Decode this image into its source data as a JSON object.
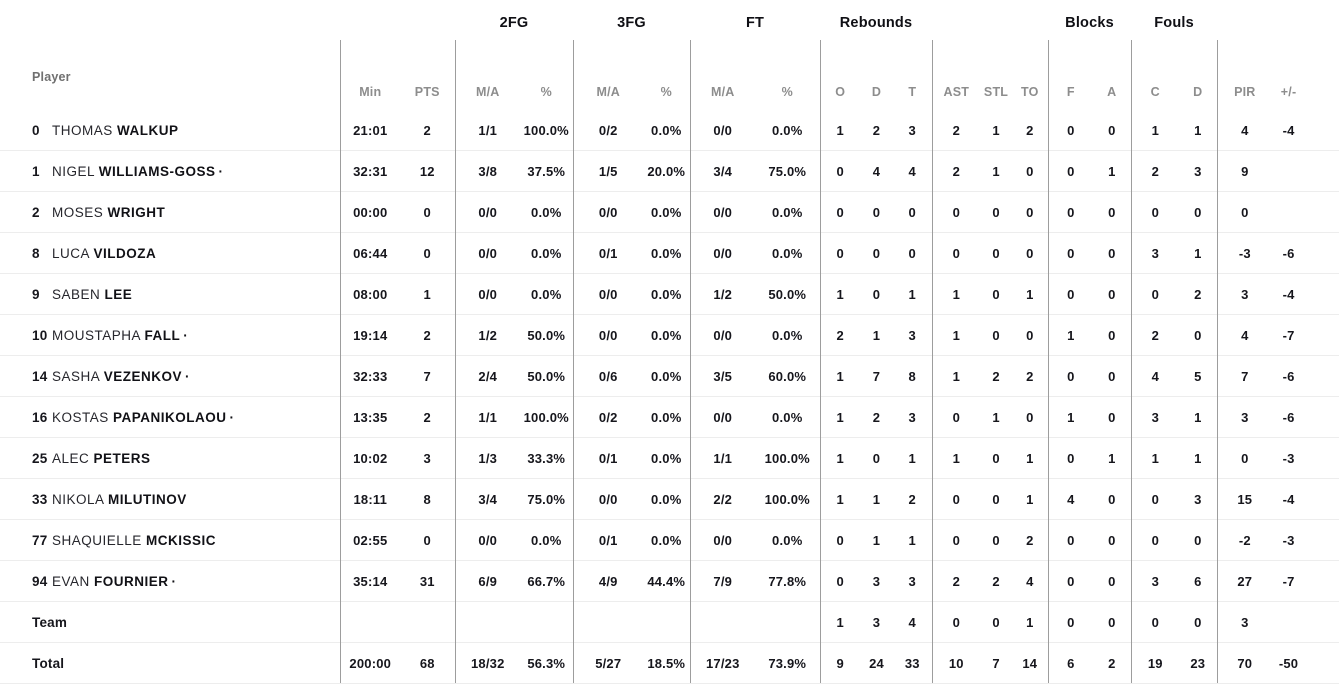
{
  "table": {
    "starter_marker": "·",
    "group_headers": {
      "fg2": "2FG",
      "fg3": "3FG",
      "ft": "FT",
      "rebounds": "Rebounds",
      "blocks": "Blocks",
      "fouls": "Fouls"
    },
    "columns": {
      "player": "Player",
      "min": "Min",
      "pts": "PTS",
      "ma": "M/A",
      "pct": "%",
      "reb_o": "O",
      "reb_d": "D",
      "reb_t": "T",
      "ast": "AST",
      "stl": "STL",
      "to": "TO",
      "blk_f": "F",
      "blk_a": "A",
      "foul_c": "C",
      "foul_d": "D",
      "pir": "PIR",
      "plus_minus": "+/-"
    },
    "rows": [
      {
        "type": "player",
        "num": "0",
        "first": "THOMAS",
        "last": "WALKUP",
        "starter": false,
        "min": "21:01",
        "pts": "2",
        "fg2_ma": "1/1",
        "fg2_pct": "100.0%",
        "fg3_ma": "0/2",
        "fg3_pct": "0.0%",
        "ft_ma": "0/0",
        "ft_pct": "0.0%",
        "reb_o": "1",
        "reb_d": "2",
        "reb_t": "3",
        "ast": "2",
        "stl": "1",
        "to": "2",
        "blk_f": "0",
        "blk_a": "0",
        "foul_c": "1",
        "foul_d": "1",
        "pir": "4",
        "pm": "-4"
      },
      {
        "type": "player",
        "num": "1",
        "first": "NIGEL",
        "last": "WILLIAMS-GOSS",
        "starter": true,
        "min": "32:31",
        "pts": "12",
        "fg2_ma": "3/8",
        "fg2_pct": "37.5%",
        "fg3_ma": "1/5",
        "fg3_pct": "20.0%",
        "ft_ma": "3/4",
        "ft_pct": "75.0%",
        "reb_o": "0",
        "reb_d": "4",
        "reb_t": "4",
        "ast": "2",
        "stl": "1",
        "to": "0",
        "blk_f": "0",
        "blk_a": "1",
        "foul_c": "2",
        "foul_d": "3",
        "pir": "9",
        "pm": ""
      },
      {
        "type": "player",
        "num": "2",
        "first": "MOSES",
        "last": "WRIGHT",
        "starter": false,
        "min": "00:00",
        "pts": "0",
        "fg2_ma": "0/0",
        "fg2_pct": "0.0%",
        "fg3_ma": "0/0",
        "fg3_pct": "0.0%",
        "ft_ma": "0/0",
        "ft_pct": "0.0%",
        "reb_o": "0",
        "reb_d": "0",
        "reb_t": "0",
        "ast": "0",
        "stl": "0",
        "to": "0",
        "blk_f": "0",
        "blk_a": "0",
        "foul_c": "0",
        "foul_d": "0",
        "pir": "0",
        "pm": ""
      },
      {
        "type": "player",
        "num": "8",
        "first": "LUCA",
        "last": "VILDOZA",
        "starter": false,
        "min": "06:44",
        "pts": "0",
        "fg2_ma": "0/0",
        "fg2_pct": "0.0%",
        "fg3_ma": "0/1",
        "fg3_pct": "0.0%",
        "ft_ma": "0/0",
        "ft_pct": "0.0%",
        "reb_o": "0",
        "reb_d": "0",
        "reb_t": "0",
        "ast": "0",
        "stl": "0",
        "to": "0",
        "blk_f": "0",
        "blk_a": "0",
        "foul_c": "3",
        "foul_d": "1",
        "pir": "-3",
        "pm": "-6"
      },
      {
        "type": "player",
        "num": "9",
        "first": "SABEN",
        "last": "LEE",
        "starter": false,
        "min": "08:00",
        "pts": "1",
        "fg2_ma": "0/0",
        "fg2_pct": "0.0%",
        "fg3_ma": "0/0",
        "fg3_pct": "0.0%",
        "ft_ma": "1/2",
        "ft_pct": "50.0%",
        "reb_o": "1",
        "reb_d": "0",
        "reb_t": "1",
        "ast": "1",
        "stl": "0",
        "to": "1",
        "blk_f": "0",
        "blk_a": "0",
        "foul_c": "0",
        "foul_d": "2",
        "pir": "3",
        "pm": "-4"
      },
      {
        "type": "player",
        "num": "10",
        "first": "MOUSTAPHA",
        "last": "FALL",
        "starter": true,
        "min": "19:14",
        "pts": "2",
        "fg2_ma": "1/2",
        "fg2_pct": "50.0%",
        "fg3_ma": "0/0",
        "fg3_pct": "0.0%",
        "ft_ma": "0/0",
        "ft_pct": "0.0%",
        "reb_o": "2",
        "reb_d": "1",
        "reb_t": "3",
        "ast": "1",
        "stl": "0",
        "to": "0",
        "blk_f": "1",
        "blk_a": "0",
        "foul_c": "2",
        "foul_d": "0",
        "pir": "4",
        "pm": "-7"
      },
      {
        "type": "player",
        "num": "14",
        "first": "SASHA",
        "last": "VEZENKOV",
        "starter": true,
        "min": "32:33",
        "pts": "7",
        "fg2_ma": "2/4",
        "fg2_pct": "50.0%",
        "fg3_ma": "0/6",
        "fg3_pct": "0.0%",
        "ft_ma": "3/5",
        "ft_pct": "60.0%",
        "reb_o": "1",
        "reb_d": "7",
        "reb_t": "8",
        "ast": "1",
        "stl": "2",
        "to": "2",
        "blk_f": "0",
        "blk_a": "0",
        "foul_c": "4",
        "foul_d": "5",
        "pir": "7",
        "pm": "-6"
      },
      {
        "type": "player",
        "num": "16",
        "first": "KOSTAS",
        "last": "PAPANIKOLAOU",
        "starter": true,
        "min": "13:35",
        "pts": "2",
        "fg2_ma": "1/1",
        "fg2_pct": "100.0%",
        "fg3_ma": "0/2",
        "fg3_pct": "0.0%",
        "ft_ma": "0/0",
        "ft_pct": "0.0%",
        "reb_o": "1",
        "reb_d": "2",
        "reb_t": "3",
        "ast": "0",
        "stl": "1",
        "to": "0",
        "blk_f": "1",
        "blk_a": "0",
        "foul_c": "3",
        "foul_d": "1",
        "pir": "3",
        "pm": "-6"
      },
      {
        "type": "player",
        "num": "25",
        "first": "ALEC",
        "last": "PETERS",
        "starter": false,
        "min": "10:02",
        "pts": "3",
        "fg2_ma": "1/3",
        "fg2_pct": "33.3%",
        "fg3_ma": "0/1",
        "fg3_pct": "0.0%",
        "ft_ma": "1/1",
        "ft_pct": "100.0%",
        "reb_o": "1",
        "reb_d": "0",
        "reb_t": "1",
        "ast": "1",
        "stl": "0",
        "to": "1",
        "blk_f": "0",
        "blk_a": "1",
        "foul_c": "1",
        "foul_d": "1",
        "pir": "0",
        "pm": "-3"
      },
      {
        "type": "player",
        "num": "33",
        "first": "NIKOLA",
        "last": "MILUTINOV",
        "starter": false,
        "min": "18:11",
        "pts": "8",
        "fg2_ma": "3/4",
        "fg2_pct": "75.0%",
        "fg3_ma": "0/0",
        "fg3_pct": "0.0%",
        "ft_ma": "2/2",
        "ft_pct": "100.0%",
        "reb_o": "1",
        "reb_d": "1",
        "reb_t": "2",
        "ast": "0",
        "stl": "0",
        "to": "1",
        "blk_f": "4",
        "blk_a": "0",
        "foul_c": "0",
        "foul_d": "3",
        "pir": "15",
        "pm": "-4"
      },
      {
        "type": "player",
        "num": "77",
        "first": "SHAQUIELLE",
        "last": "MCKISSIC",
        "starter": false,
        "min": "02:55",
        "pts": "0",
        "fg2_ma": "0/0",
        "fg2_pct": "0.0%",
        "fg3_ma": "0/1",
        "fg3_pct": "0.0%",
        "ft_ma": "0/0",
        "ft_pct": "0.0%",
        "reb_o": "0",
        "reb_d": "1",
        "reb_t": "1",
        "ast": "0",
        "stl": "0",
        "to": "2",
        "blk_f": "0",
        "blk_a": "0",
        "foul_c": "0",
        "foul_d": "0",
        "pir": "-2",
        "pm": "-3"
      },
      {
        "type": "player",
        "num": "94",
        "first": "EVAN",
        "last": "FOURNIER",
        "starter": true,
        "min": "35:14",
        "pts": "31",
        "fg2_ma": "6/9",
        "fg2_pct": "66.7%",
        "fg3_ma": "4/9",
        "fg3_pct": "44.4%",
        "ft_ma": "7/9",
        "ft_pct": "77.8%",
        "reb_o": "0",
        "reb_d": "3",
        "reb_t": "3",
        "ast": "2",
        "stl": "2",
        "to": "4",
        "blk_f": "0",
        "blk_a": "0",
        "foul_c": "3",
        "foul_d": "6",
        "pir": "27",
        "pm": "-7"
      },
      {
        "type": "team",
        "label": "Team",
        "min": "",
        "pts": "",
        "fg2_ma": "",
        "fg2_pct": "",
        "fg3_ma": "",
        "fg3_pct": "",
        "ft_ma": "",
        "ft_pct": "",
        "reb_o": "1",
        "reb_d": "3",
        "reb_t": "4",
        "ast": "0",
        "stl": "0",
        "to": "1",
        "blk_f": "0",
        "blk_a": "0",
        "foul_c": "0",
        "foul_d": "0",
        "pir": "3",
        "pm": ""
      },
      {
        "type": "total",
        "label": "Total",
        "min": "200:00",
        "pts": "68",
        "fg2_ma": "18/32",
        "fg2_pct": "56.3%",
        "fg3_ma": "5/27",
        "fg3_pct": "18.5%",
        "ft_ma": "17/23",
        "ft_pct": "73.9%",
        "reb_o": "9",
        "reb_d": "24",
        "reb_t": "33",
        "ast": "10",
        "stl": "7",
        "to": "14",
        "blk_f": "6",
        "blk_a": "2",
        "foul_c": "19",
        "foul_d": "23",
        "pir": "70",
        "pm": "-50"
      }
    ]
  }
}
